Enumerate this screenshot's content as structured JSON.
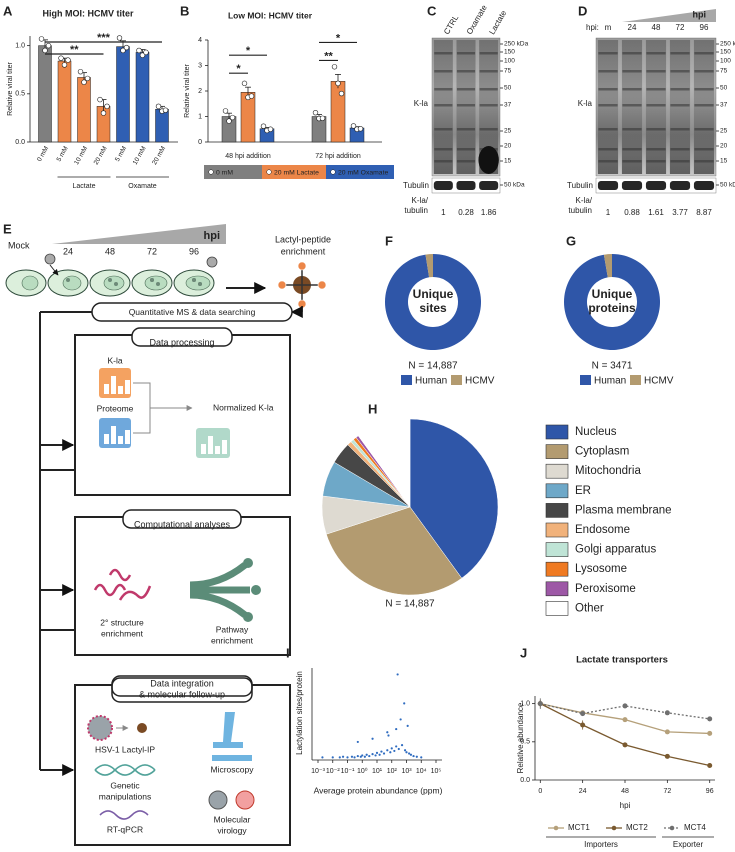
{
  "chart_data": [
    {
      "type": "bar",
      "label": "A",
      "title": "High MOI: HCMV titer",
      "ylabel": "Relative viral titer",
      "categories": [
        "0 mM",
        "5 mM",
        "10 mM",
        "20 mM",
        "5 mM",
        "10 mM",
        "20 mM"
      ],
      "values": [
        1.0,
        0.84,
        0.67,
        0.37,
        0.99,
        0.93,
        0.34
      ],
      "errors": [
        0.06,
        0.03,
        0.05,
        0.07,
        0.06,
        0.03,
        0.03
      ],
      "points": [
        [
          1.07,
          0.95,
          1.0
        ],
        [
          0.87,
          0.8,
          0.85
        ],
        [
          0.73,
          0.62,
          0.66
        ],
        [
          0.44,
          0.3,
          0.37
        ],
        [
          1.08,
          0.95,
          0.98
        ],
        [
          0.95,
          0.9,
          0.93
        ],
        [
          0.37,
          0.32,
          0.33
        ]
      ],
      "colors": [
        "#7f7f7f",
        "#ec8648",
        "#ec8648",
        "#ec8648",
        "#2f5fb3",
        "#2f5fb3",
        "#2f5fb3"
      ],
      "groups": [
        {
          "name": "Lactate",
          "members": [
            1,
            2,
            3
          ]
        },
        {
          "name": "Oxamate",
          "members": [
            4,
            5,
            6
          ]
        }
      ],
      "significance": [
        {
          "pair": [
            0,
            3
          ],
          "label": "**"
        },
        {
          "pair": [
            0,
            6
          ],
          "label": "***"
        }
      ],
      "ylim": [
        0,
        1.1
      ],
      "yticks": [
        {
          "value": 0,
          "label": "0.0"
        },
        {
          "value": 0.5,
          "label": "0.5"
        },
        {
          "value": 1,
          "label": "1.0"
        }
      ]
    },
    {
      "type": "grouped-bar",
      "label": "B",
      "title": "Low MOI: HCMV titer",
      "ylabel": "Relative viral titer",
      "categories": [
        "48 hpi addition",
        "72 hpi addition"
      ],
      "series": [
        {
          "name": "0 mM",
          "color": "#7f7f7f",
          "values": [
            1.0,
            1.0
          ],
          "errors": [
            0.13,
            0.08
          ],
          "points": [
            [
              1.22,
              0.82,
              0.96
            ],
            [
              1.15,
              0.92,
              0.93
            ]
          ]
        },
        {
          "name": "20 mM Lactate",
          "color": "#ec8648",
          "values": [
            1.95,
            2.38
          ],
          "errors": [
            0.2,
            0.27
          ],
          "points": [
            [
              2.3,
              1.75,
              1.8
            ],
            [
              2.95,
              2.3,
              1.9
            ]
          ]
        },
        {
          "name": "20 mM Oxamate",
          "color": "#2f5fb3",
          "values": [
            0.52,
            0.55
          ],
          "errors": [
            0.05,
            0.05
          ],
          "points": [
            [
              0.62,
              0.45,
              0.5
            ],
            [
              0.63,
              0.5,
              0.52
            ]
          ]
        }
      ],
      "significance": [
        {
          "category": 0,
          "pair": [
            0,
            1
          ],
          "label": "*"
        },
        {
          "category": 0,
          "pair": [
            0,
            2
          ],
          "label": "*"
        },
        {
          "category": 1,
          "pair": [
            0,
            1
          ],
          "label": "**"
        },
        {
          "category": 1,
          "pair": [
            0,
            2
          ],
          "label": "*"
        }
      ],
      "ylim": [
        0,
        4
      ],
      "yticks": [
        0,
        1,
        2,
        3,
        4
      ]
    },
    {
      "type": "donut",
      "label": "F",
      "center_text": [
        "Unique",
        "sites"
      ],
      "total_label": "N = 14,887",
      "categories": [
        "Human",
        "HCMV"
      ],
      "colors": [
        "#2f56a8",
        "#b39b70"
      ],
      "values": [
        97.5,
        2.5
      ]
    },
    {
      "type": "donut",
      "label": "G",
      "center_text": [
        "Unique",
        "proteins"
      ],
      "total_label": "N = 3471",
      "categories": [
        "Human",
        "HCMV"
      ],
      "colors": [
        "#2f56a8",
        "#b39b70"
      ],
      "values": [
        97.3,
        2.7
      ]
    },
    {
      "type": "pie",
      "label": "H",
      "total_label": "N = 14,887",
      "categories": [
        "Nucleus",
        "Cytoplasm",
        "Mitochondria",
        "ER",
        "Plasma membrane",
        "Endosome",
        "Golgi apparatus",
        "Lysosome",
        "Peroxisome",
        "Other"
      ],
      "colors": [
        "#2f56a8",
        "#b39b70",
        "#dedad1",
        "#6ea8c8",
        "#474747",
        "#f1b27b",
        "#bfe4d6",
        "#ef7a22",
        "#9d58a6",
        "#ffffff"
      ],
      "values": [
        40,
        30,
        7,
        6.5,
        4,
        0.8,
        0.6,
        0.6,
        0.5,
        10
      ]
    },
    {
      "type": "scatter",
      "label": "I",
      "xlabel": "Average protein abundance (ppm)",
      "ylabel": "Lactylation sites/protein",
      "xscale": "log",
      "xlim": [
        0.001,
        100000
      ],
      "xticks": [
        {
          "value": 0.001,
          "label": "10⁻³"
        },
        {
          "value": 0.01,
          "label": "10⁻²"
        },
        {
          "value": 0.1,
          "label": "10⁻¹"
        },
        {
          "value": 1,
          "label": "10⁰"
        },
        {
          "value": 10,
          "label": "10¹"
        },
        {
          "value": 100,
          "label": "10²"
        },
        {
          "value": 1000,
          "label": "10³"
        },
        {
          "value": 10000,
          "label": "10⁴"
        },
        {
          "value": 100000,
          "label": "10⁵"
        }
      ],
      "ylim": [
        0,
        140
      ],
      "color": "#2f6cc0",
      "x": [
        0.002,
        0.01,
        0.03,
        0.05,
        0.1,
        0.2,
        0.3,
        0.5,
        0.8,
        1,
        1.5,
        2,
        3,
        5,
        8,
        10,
        15,
        20,
        30,
        50,
        80,
        100,
        150,
        200,
        300,
        500,
        800,
        1000,
        1500,
        2000,
        3000,
        5000,
        10000,
        0.5,
        5,
        50,
        200,
        400,
        700,
        1200,
        250,
        60
      ],
      "y": [
        1,
        1,
        1,
        2,
        1,
        2,
        1,
        3,
        2,
        4,
        2,
        5,
        3,
        6,
        4,
        8,
        5,
        10,
        7,
        12,
        9,
        15,
        11,
        18,
        14,
        20,
        12,
        9,
        7,
        5,
        3,
        2,
        1,
        25,
        30,
        40,
        45,
        60,
        85,
        50,
        130,
        35
      ]
    },
    {
      "type": "line",
      "label": "J",
      "title": "Lactate transporters",
      "xlabel": "hpi",
      "ylabel": "Relative abundance",
      "x": [
        0,
        24,
        48,
        72,
        96
      ],
      "xlim": [
        -3,
        99
      ],
      "xticks": [
        0,
        24,
        48,
        72,
        96
      ],
      "ylim": [
        0,
        1.1
      ],
      "yticks": [
        {
          "value": 0,
          "label": "0.0"
        },
        {
          "value": 0.5,
          "label": "0.5"
        },
        {
          "value": 1,
          "label": "1.0"
        }
      ],
      "series": [
        {
          "name": "MCT1",
          "color": "#b5a07a",
          "dashed": false,
          "values": [
            1.0,
            0.88,
            0.79,
            0.63,
            0.61
          ],
          "errors": [
            0.05,
            0.02,
            0.02,
            0.02,
            0.03
          ]
        },
        {
          "name": "MCT2",
          "color": "#7a5a30",
          "dashed": false,
          "values": [
            1.0,
            0.72,
            0.46,
            0.31,
            0.19
          ],
          "errors": [
            0.05,
            0.06,
            0.03,
            0.02,
            0.01
          ]
        },
        {
          "name": "MCT4",
          "color": "#6f6f6f",
          "dashed": true,
          "values": [
            1.0,
            0.87,
            0.97,
            0.88,
            0.8
          ],
          "errors": [
            0.07,
            0.02,
            0.03,
            0.03,
            0.03
          ]
        }
      ],
      "legend_groups": [
        {
          "name": "Importers",
          "members": [
            0,
            1
          ]
        },
        {
          "name": "Exporter",
          "members": [
            2
          ]
        }
      ]
    }
  ],
  "blots": [
    {
      "label": "C",
      "lanes": [
        "CTRL",
        "Oxamate",
        "Lactate"
      ],
      "band_label": "K-la",
      "loading_label": "Tubulin",
      "markers": [
        "250 kDa",
        "150",
        "100",
        "75",
        "50",
        "37",
        "25",
        "20",
        "15"
      ],
      "loading_marker": "50 kDa",
      "ratio_label": [
        "K-la/",
        "tubulin"
      ],
      "ratios": [
        1,
        0.28,
        1.86
      ]
    },
    {
      "label": "D",
      "lanes_label": "hpi:",
      "wedge_label": "hpi",
      "lanes": [
        "m",
        "24",
        "48",
        "72",
        "96"
      ],
      "band_label": "K-la",
      "loading_label": "Tubulin",
      "markers": [
        "250 kDa",
        "150",
        "100",
        "75",
        "50",
        "37",
        "25",
        "20",
        "15"
      ],
      "loading_marker": "50 kDa",
      "ratio_label": [
        "K-la/",
        "tubulin"
      ],
      "ratios": [
        1,
        0.88,
        1.61,
        3.77,
        8.87
      ]
    }
  ],
  "workflow": {
    "label": "E",
    "mock": "Mock",
    "times": [
      "24",
      "48",
      "72",
      "96"
    ],
    "unit": "hpi",
    "enrichment": [
      "Lactyl-peptide",
      "enrichment"
    ],
    "ms": "Quantitative MS & data searching",
    "processing": {
      "title": "Data processing",
      "kla": "K-la",
      "proteome": "Proteome",
      "normalized": "Normalized K-la"
    },
    "computational": {
      "title": "Computational analyses",
      "structure": [
        "2° structure",
        "enrichment"
      ],
      "pathway": [
        "Pathway",
        "enrichment"
      ]
    },
    "integration": {
      "title": [
        "Data integration",
        "& molecular follow-up"
      ],
      "lactyl_ip": "HSV-1 Lactyl-IP",
      "microscopy": "Microscopy",
      "genetic": [
        "Genetic",
        "manipulations"
      ],
      "virology": [
        "Molecular",
        "virology"
      ],
      "rtqpcr": "RT-qPCR"
    }
  }
}
